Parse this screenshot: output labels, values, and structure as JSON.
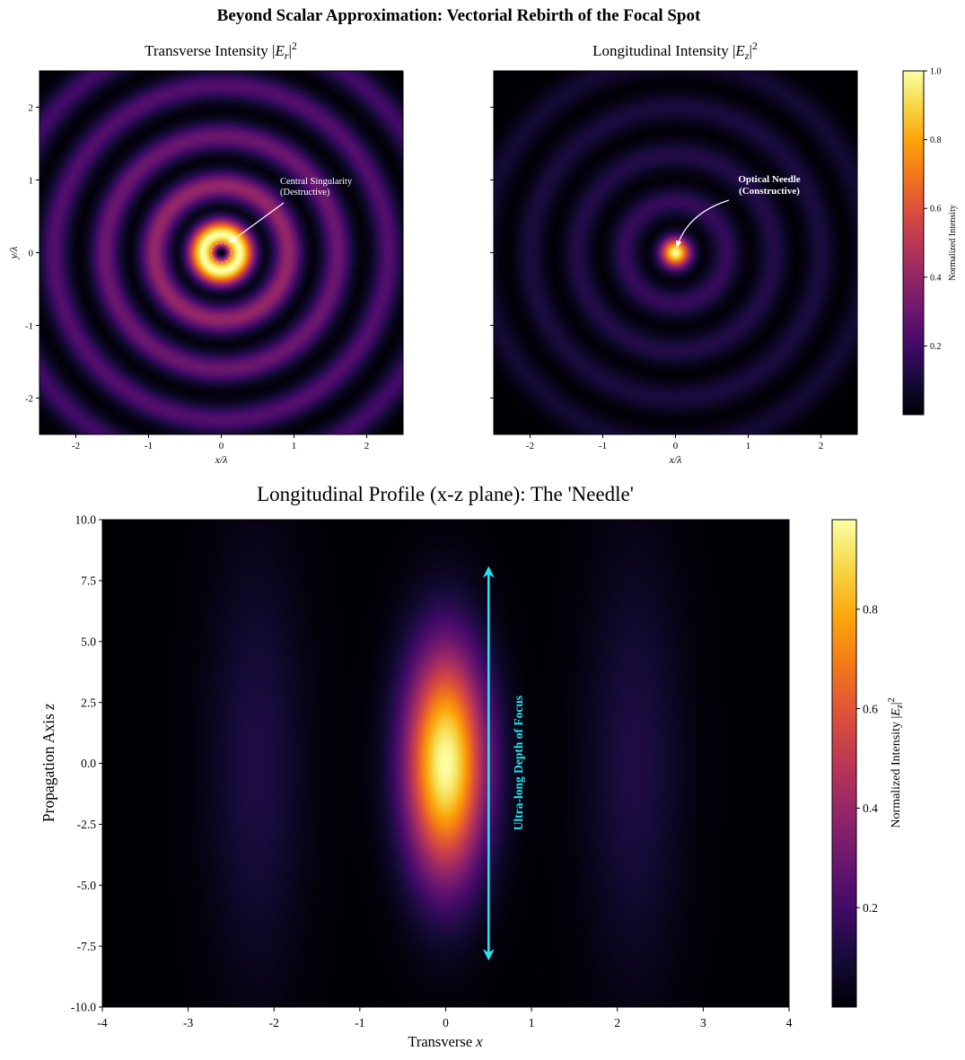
{
  "figure": {
    "title": "Beyond Scalar Approximation: Vectorial Rebirth of the Focal Spot"
  },
  "colors": {
    "colormap": "inferno",
    "singularity_circle": "#cc99ff",
    "annotation_arrow": "#ffffff",
    "depth_arrow": "#22e5f0",
    "axis": "#000000"
  },
  "chart_data": [
    {
      "type": "heatmap",
      "id": "transverse",
      "title_prefix": "Transverse Intensity |",
      "title_var": "E",
      "title_sub": "r",
      "title_suffix": "|",
      "title_sup": "2",
      "xlabel": "x/λ",
      "ylabel": "y/λ",
      "xlim": [
        -2.5,
        2.5
      ],
      "ylim": [
        -2.5,
        2.5
      ],
      "xticks": [
        -2,
        -1,
        0,
        1,
        2
      ],
      "yticks": [
        -2,
        -1,
        0,
        1,
        2
      ],
      "xtick_labels": [
        "-2",
        "-1",
        "0",
        "1",
        "2"
      ],
      "ytick_labels": [
        "-2",
        "-1",
        "0",
        "1",
        "2"
      ],
      "ring_peaks_r": [
        0.25,
        0.92,
        1.6,
        2.3,
        3.0
      ],
      "ring_peak_values": [
        1.0,
        0.4,
        0.3,
        0.24,
        0.2
      ],
      "annotation": {
        "line1": "Central Singularity",
        "line2": "(Destructive)",
        "points_to": [
          0,
          0
        ]
      }
    },
    {
      "type": "heatmap",
      "id": "longitudinal",
      "title_prefix": "Longitudinal Intensity |",
      "title_var": "E",
      "title_sub": "z",
      "title_suffix": "|",
      "title_sup": "2",
      "xlabel": "x/λ",
      "xlim": [
        -2.5,
        2.5
      ],
      "ylim": [
        -2.5,
        2.5
      ],
      "xticks": [
        -2,
        -1,
        0,
        1,
        2
      ],
      "xtick_labels": [
        "-2",
        "-1",
        "0",
        "1",
        "2"
      ],
      "ring_peaks_r": [
        0.0,
        0.7,
        1.35,
        2.0,
        2.65
      ],
      "ring_peak_values": [
        1.0,
        0.17,
        0.13,
        0.11,
        0.09
      ],
      "annotation": {
        "line1": "Optical Needle",
        "line2": "(Constructive)",
        "points_to": [
          0,
          0
        ]
      },
      "colorbar": {
        "label": "Normalized Intensity",
        "range": [
          0,
          1.0
        ],
        "ticks": [
          0.2,
          0.4,
          0.6,
          0.8,
          1.0
        ],
        "tick_labels": [
          "0.2",
          "0.4",
          "0.6",
          "0.8",
          "1.0"
        ]
      }
    },
    {
      "type": "heatmap",
      "id": "profile",
      "title": "Longitudinal Profile (x-z plane): The 'Needle'",
      "xlabel_prefix": "Transverse ",
      "xlabel_var": "x",
      "ylabel_prefix": "Propagation Axis ",
      "ylabel_var": "z",
      "xlim": [
        -4,
        4
      ],
      "ylim": [
        -10,
        10
      ],
      "xticks": [
        -4,
        -3,
        -2,
        -1,
        0,
        1,
        2,
        3,
        4
      ],
      "xtick_labels": [
        "-4",
        "-3",
        "-2",
        "-1",
        "0",
        "1",
        "2",
        "3",
        "4"
      ],
      "yticks": [
        10,
        7.5,
        5,
        2.5,
        0,
        -2.5,
        -5,
        -7.5,
        -10
      ],
      "ytick_labels": [
        "10.0",
        "7.5",
        "5.0",
        "2.5",
        "0.0",
        "-2.5",
        "-5.0",
        "-7.5",
        "-10.0"
      ],
      "central_peak": {
        "x": 0,
        "z": 0,
        "value": 0.98
      },
      "side_lobes": [
        {
          "x": -2.2,
          "value": 0.12
        },
        {
          "x": 2.2,
          "value": 0.12
        }
      ],
      "depth_arrow": {
        "x": 0.5,
        "z_from": 8.0,
        "z_to": -8.0
      },
      "annotation": "Ultra-long Depth of Focus",
      "colorbar": {
        "label_prefix": "Normalized Intensity |",
        "label_var": "E",
        "label_sub": "z",
        "label_suffix": "|",
        "label_sup": "2",
        "range": [
          0,
          0.98
        ],
        "ticks": [
          0.2,
          0.4,
          0.6,
          0.8
        ],
        "tick_labels": [
          "0.2",
          "0.4",
          "0.6",
          "0.8"
        ]
      }
    }
  ]
}
